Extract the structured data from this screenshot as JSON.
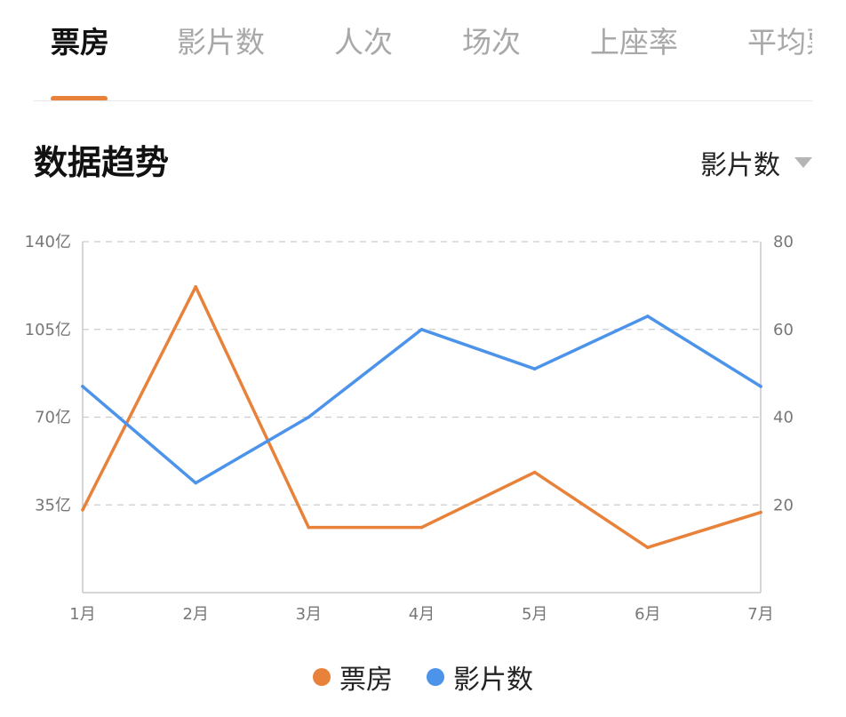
{
  "tabs": [
    {
      "label": "票房",
      "active": true
    },
    {
      "label": "影片数",
      "active": false
    },
    {
      "label": "人次",
      "active": false
    },
    {
      "label": "场次",
      "active": false
    },
    {
      "label": "上座率",
      "active": false
    },
    {
      "label": "平均票价",
      "active": false
    }
  ],
  "section": {
    "title": "数据趋势",
    "metric_select": "影片数"
  },
  "colors": {
    "accent": "#e8823a",
    "boxoffice": "#e8823a",
    "films": "#4c93ea"
  },
  "chart_data": {
    "type": "line",
    "categories": [
      "1月",
      "2月",
      "3月",
      "4月",
      "5月",
      "6月",
      "7月"
    ],
    "series": [
      {
        "name": "票房",
        "axis": "left",
        "color": "#e8823a",
        "values": [
          33,
          122,
          26,
          26,
          48,
          18,
          32
        ]
      },
      {
        "name": "影片数",
        "axis": "right",
        "color": "#4c93ea",
        "values": [
          47,
          25,
          40,
          60,
          51,
          63,
          47
        ]
      }
    ],
    "y_left": {
      "ticks": [
        "140亿",
        "105亿",
        "70亿",
        "35亿"
      ],
      "tick_values": [
        140,
        105,
        70,
        35
      ],
      "min": 0,
      "max": 140
    },
    "y_right": {
      "ticks": [
        "80",
        "60",
        "40",
        "20"
      ],
      "tick_values": [
        80,
        60,
        40,
        20
      ],
      "min": 0,
      "max": 80
    },
    "grid": "dashed horizontal",
    "legend_position": "bottom-center"
  }
}
